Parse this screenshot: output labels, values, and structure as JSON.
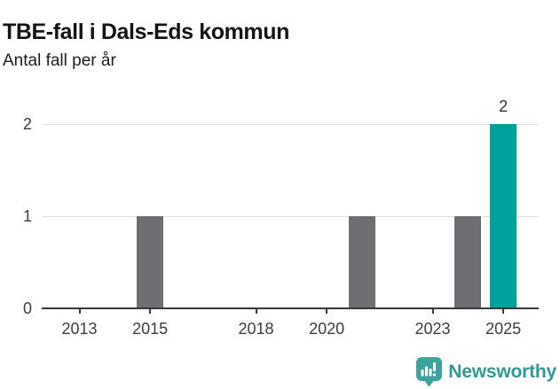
{
  "header": {
    "title": "TBE-fall i Dals-Eds kommun",
    "subtitle": "Antal fall per år"
  },
  "chart_data": {
    "type": "bar",
    "title": "TBE-fall i Dals-Eds kommun",
    "subtitle": "Antal fall per år",
    "xlabel": "",
    "ylabel": "Antal fall per år",
    "x": [
      2012,
      2013,
      2014,
      2015,
      2016,
      2017,
      2018,
      2019,
      2020,
      2021,
      2022,
      2023,
      2024,
      2025
    ],
    "values": [
      0,
      0,
      0,
      1,
      0,
      0,
      0,
      0,
      0,
      1,
      0,
      0,
      1,
      2
    ],
    "xticks": [
      2013,
      2015,
      2018,
      2020,
      2023,
      2025
    ],
    "yticks": [
      0,
      1,
      2
    ],
    "ylim": [
      0,
      2
    ],
    "grid": "horizontal",
    "legend": "none",
    "highlight_x": 2025,
    "data_labels": [
      {
        "x": 2025,
        "label": "2"
      }
    ],
    "colors": {
      "bar": "#6e6e73",
      "highlight": "#00a19b",
      "axis": "#3a3a3a",
      "grid": "#e0e0e0",
      "tick_label": "#3d3d3d",
      "data_label": "#333333"
    }
  },
  "footer": {
    "brand": "Newsworthy",
    "logo_icon": "newsworthy-pin-bar-chart-icon",
    "colors": {
      "badge": "#3ea29d",
      "glyph": "#ffffff",
      "text": "#2f9a96"
    }
  }
}
